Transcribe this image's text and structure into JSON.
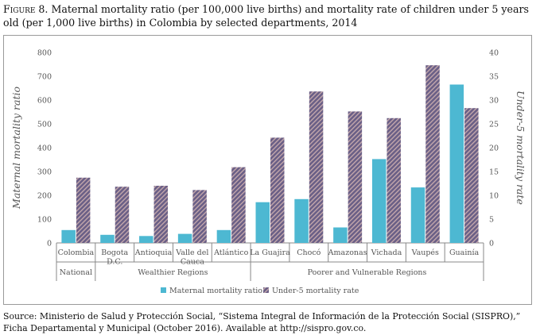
{
  "figure": {
    "label": "Figure 8.",
    "title": "Maternal mortality ratio (per 100,000 live births) and mortality rate of children under 5 years old (per 1,000 live births) in Colombia by selected departments, 2014",
    "source": "Source: Ministerio de Salud y Protección Social, “Sistema Integral de Información de la Protección Social (SISPRO),” Ficha Departamental y Municipal (October 2016). Available at http://sispro.gov.co."
  },
  "colors": {
    "maternal": "#4db8d2",
    "under5_fill": "#6a5f86",
    "under5_stripe": "#c3a7ac",
    "axis": "#888888",
    "grid": "#d9d9d9",
    "text": "#555555"
  },
  "chart_data": {
    "type": "bar",
    "categories": [
      "Colombia",
      "Bogota D.C.",
      "Antioquia",
      "Valle del Cauca",
      "Atlántico",
      "La Guajira",
      "Chocó",
      "Amazonas",
      "Vichada",
      "Vaupés",
      "Guainía"
    ],
    "category_display": [
      [
        "Colombia"
      ],
      [
        "Bogota",
        "D.C."
      ],
      [
        "Antioquia"
      ],
      [
        "Valle del",
        "Cauca"
      ],
      [
        "Atlántico"
      ],
      [
        "La Guajira"
      ],
      [
        "Chocó"
      ],
      [
        "Amazonas"
      ],
      [
        "Vichada"
      ],
      [
        "Vaupés"
      ],
      [
        "Guainía"
      ]
    ],
    "groups": [
      {
        "label": "National",
        "categories": [
          "Colombia"
        ]
      },
      {
        "label": "Wealthier Regions",
        "categories": [
          "Bogota D.C.",
          "Antioquia",
          "Valle del Cauca",
          "Atlántico"
        ]
      },
      {
        "label": "Poorer and Vulnerable Regions",
        "categories": [
          "La Guajira",
          "Chocó",
          "Amazonas",
          "Vichada",
          "Vaupés",
          "Guainía"
        ]
      }
    ],
    "series": [
      {
        "name": "Maternal mortality ratio",
        "axis": "left",
        "values": [
          54,
          34,
          29,
          38,
          54,
          171,
          184,
          65,
          352,
          233,
          665
        ]
      },
      {
        "name": "Under-5 mortality rate",
        "axis": "right",
        "values": [
          13.7,
          11.8,
          12.0,
          11.1,
          15.9,
          22.1,
          31.8,
          27.6,
          26.2,
          37.3,
          28.3
        ]
      }
    ],
    "ylabel": "Maternal mortality ratio",
    "y2label": "Under-5 mortality rate",
    "ylim": [
      0,
      800
    ],
    "y2lim": [
      0,
      40
    ],
    "yticks": [
      0,
      100,
      200,
      300,
      400,
      500,
      600,
      700,
      800
    ],
    "y2ticks": [
      0,
      5,
      10,
      15,
      20,
      25,
      30,
      35,
      40
    ],
    "grid": false,
    "legend_position": "bottom"
  }
}
